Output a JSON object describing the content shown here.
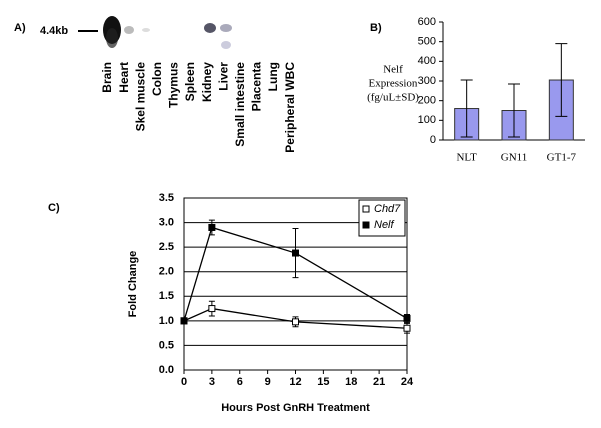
{
  "chart_data": [
    {
      "type": "blot",
      "panel_label": "A)",
      "band_label": "4.4kb",
      "categories": [
        "Brain",
        "Heart",
        "Skel muscle",
        "Colon",
        "Thymus",
        "Spleen",
        "Kidney",
        "Liver",
        "Small intestine",
        "Placenta",
        "Lung",
        "Peripheral WBC"
      ]
    },
    {
      "type": "bar",
      "panel_label": "B)",
      "ylabel": [
        "Nelf",
        "Expression",
        "(fg/uL±SD)"
      ],
      "categories": [
        "NLT",
        "GN11",
        "GT1-7"
      ],
      "values": [
        160,
        150,
        305
      ],
      "errors": [
        145,
        135,
        185
      ],
      "color": "#9999ee",
      "ylim": [
        0,
        600
      ],
      "yticks": [
        0,
        100,
        200,
        300,
        400,
        500,
        600
      ]
    },
    {
      "type": "line",
      "panel_label": "C)",
      "xlabel": "Hours Post GnRH Treatment",
      "ylabel": "Fold Change",
      "x": [
        0,
        3,
        12,
        24
      ],
      "xlim": [
        0,
        24
      ],
      "xticks": [
        0,
        3,
        6,
        9,
        12,
        15,
        18,
        21,
        24
      ],
      "ylim": [
        0,
        3.5
      ],
      "yticks": [
        {
          "value": 0,
          "label": "0.0"
        },
        {
          "value": 0.5,
          "label": "0.5"
        },
        {
          "value": 1,
          "label": "1.0"
        },
        {
          "value": 1.5,
          "label": "1.5"
        },
        {
          "value": 2,
          "label": "2.0"
        },
        {
          "value": 2.5,
          "label": "2.5"
        },
        {
          "value": 3,
          "label": "3.0"
        },
        {
          "value": 3.5,
          "label": "3.5"
        }
      ],
      "grid": true,
      "legend": "upper right",
      "series": [
        {
          "name": "Chd7",
          "color": "#000000",
          "fill": "#ffffff",
          "values": [
            1.0,
            1.25,
            0.98,
            0.85
          ],
          "errors": [
            0,
            0.15,
            0.1,
            0.1
          ]
        },
        {
          "name": "Nelf",
          "color": "#000000",
          "fill": "#000000",
          "values": [
            1.0,
            2.9,
            2.38,
            1.05
          ],
          "errors": [
            0,
            0.15,
            0.5,
            0.08
          ]
        }
      ]
    }
  ]
}
